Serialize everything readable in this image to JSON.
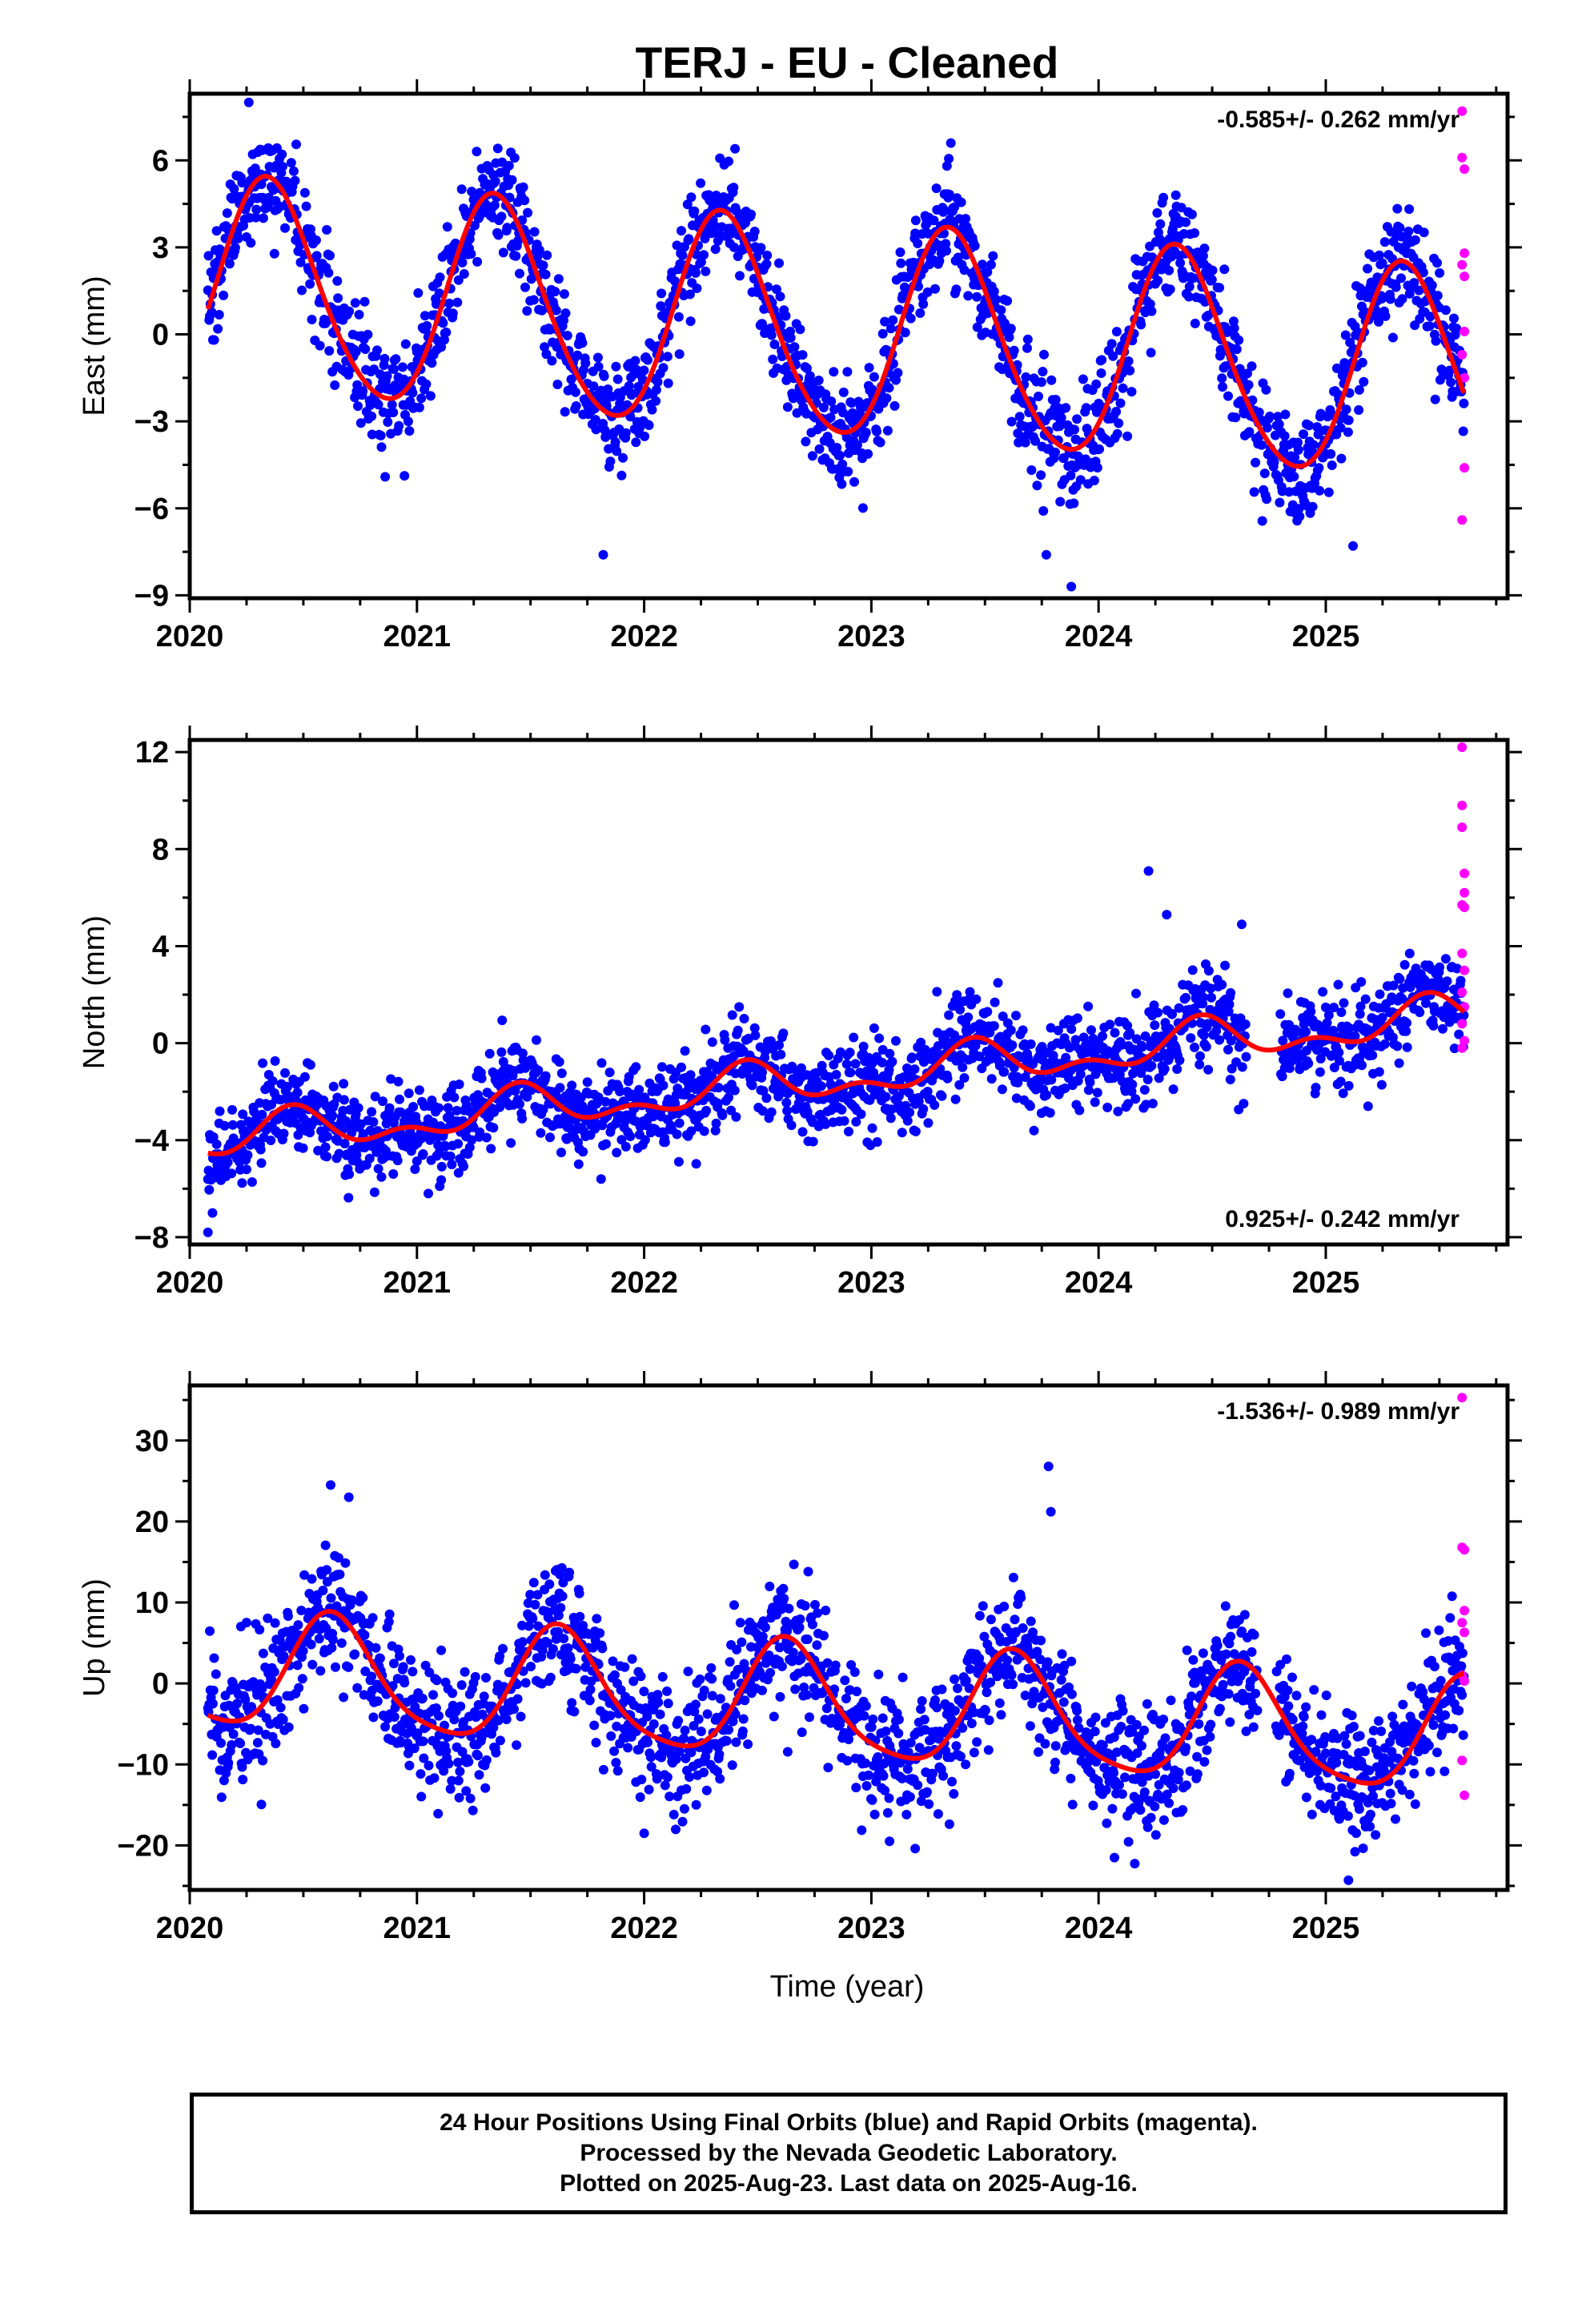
{
  "figure": {
    "title": "TERJ  - EU - Cleaned",
    "xlabel": "Time (year)",
    "caption": [
      "24 Hour Positions Using Final Orbits (blue) and Rapid Orbits (magenta).",
      "Processed by the Nevada Geodetic Laboratory.",
      "Plotted on 2025-Aug-23. Last data on 2025-Aug-16."
    ]
  },
  "colors": {
    "final_orbits": "#0000ff",
    "rapid_orbits": "#ff00ff",
    "model_fit": "#ff0000",
    "axes": "#000000"
  },
  "chart_data": [
    {
      "type": "scatter",
      "component": "East",
      "ylabel": "East (mm)",
      "xlim": [
        2020.0,
        2025.8
      ],
      "ylim": [
        -9.1,
        8.3
      ],
      "yticks": [
        -9,
        -6,
        -3,
        0,
        3,
        6
      ],
      "ytick_labels": [
        "−9",
        "−6",
        "−3",
        "0",
        "3",
        "6"
      ],
      "xticks": [
        2020,
        2021,
        2022,
        2023,
        2024,
        2025
      ],
      "rate_text": "-0.585+/- 0.262 mm/yr",
      "rate_position": "top-right",
      "model": {
        "offset": 1.7,
        "rate": -0.585,
        "annual_amplitude": 3.65,
        "annual_peak": 0.35,
        "semiannual_amplitude": 0.35,
        "semiannual_peak": 0.3
      },
      "scatter_sd": 0.95,
      "data_start": 2020.08,
      "data_end": 2025.61,
      "gaps": [],
      "final_points": [
        [
          2020.26,
          8.0
        ],
        [
          2021.42,
          4.2
        ],
        [
          2022.4,
          6.4
        ],
        [
          2023.35,
          6.6
        ],
        [
          2023.77,
          -7.6
        ],
        [
          2024.34,
          4.8
        ],
        [
          2021.82,
          -7.6
        ],
        [
          2023.88,
          -8.7
        ],
        [
          2025.12,
          -7.3
        ]
      ],
      "rapid_points": [
        [
          2025.6,
          7.7
        ],
        [
          2025.6,
          6.1
        ],
        [
          2025.61,
          5.7
        ],
        [
          2025.61,
          2.8
        ],
        [
          2025.6,
          2.4
        ],
        [
          2025.61,
          2.0
        ],
        [
          2025.61,
          0.1
        ],
        [
          2025.6,
          -0.7
        ],
        [
          2025.61,
          -1.5
        ],
        [
          2025.61,
          -4.6
        ],
        [
          2025.6,
          -6.4
        ]
      ]
    },
    {
      "type": "scatter",
      "component": "North",
      "ylabel": "North (mm)",
      "xlim": [
        2020.0,
        2025.8
      ],
      "ylim": [
        -8.3,
        12.5
      ],
      "yticks": [
        -8,
        -4,
        0,
        4,
        8,
        12
      ],
      "ytick_labels": [
        "−8",
        "−4",
        "0",
        "4",
        "8",
        "12"
      ],
      "xticks": [
        2020,
        2021,
        2022,
        2023,
        2024,
        2025
      ],
      "rate_text": "0.925+/- 0.242 mm/yr",
      "rate_position": "bottom-right",
      "model": {
        "offset": -4.1,
        "rate": 0.925,
        "annual_amplitude": 0.7,
        "annual_peak": 0.45,
        "semiannual_amplitude": 0.45,
        "semiannual_peak": 0.45
      },
      "scatter_sd": 0.9,
      "data_start": 2020.08,
      "data_end": 2025.61,
      "gaps": [
        [
          2024.65,
          2024.8
        ]
      ],
      "final_points": [
        [
          2020.08,
          -7.8
        ],
        [
          2020.1,
          -7.0
        ],
        [
          2024.22,
          7.1
        ],
        [
          2024.3,
          5.3
        ],
        [
          2024.63,
          4.9
        ],
        [
          2024.58,
          -1.5
        ],
        [
          2024.13,
          -2.5
        ],
        [
          2021.05,
          -6.2
        ],
        [
          2021.1,
          -5.9
        ]
      ],
      "rapid_points": [
        [
          2025.6,
          12.2
        ],
        [
          2025.6,
          9.8
        ],
        [
          2025.6,
          8.9
        ],
        [
          2025.61,
          7.0
        ],
        [
          2025.61,
          6.2
        ],
        [
          2025.6,
          5.7
        ],
        [
          2025.61,
          5.6
        ],
        [
          2025.6,
          3.7
        ],
        [
          2025.61,
          3.0
        ],
        [
          2025.6,
          2.1
        ],
        [
          2025.61,
          1.5
        ],
        [
          2025.6,
          0.8
        ],
        [
          2025.61,
          0.1
        ],
        [
          2025.6,
          -0.2
        ]
      ]
    },
    {
      "type": "scatter",
      "component": "Up",
      "ylabel": "Up (mm)",
      "xlim": [
        2020.0,
        2025.8
      ],
      "ylim": [
        -25.5,
        36.8
      ],
      "yticks": [
        -20,
        -10,
        0,
        10,
        20,
        30
      ],
      "ytick_labels": [
        "−20",
        "−10",
        "0",
        "10",
        "20",
        "30"
      ],
      "xticks": [
        2020,
        2021,
        2022,
        2023,
        2024,
        2025
      ],
      "rate_text": "-1.536+/- 0.989 mm/yr",
      "rate_position": "top-right",
      "model": {
        "offset": 1.6,
        "rate": -1.536,
        "annual_amplitude": 7.0,
        "annual_peak": 0.63,
        "semiannual_amplitude": 1.3,
        "semiannual_peak": 0.1
      },
      "scatter_sd": 4.0,
      "data_start": 2020.08,
      "data_end": 2025.61,
      "gaps": [
        [
          2024.7,
          2024.78
        ]
      ],
      "final_points": [
        [
          2020.62,
          24.5
        ],
        [
          2020.7,
          23.0
        ],
        [
          2023.78,
          26.8
        ],
        [
          2023.79,
          21.2
        ],
        [
          2024.07,
          -21.5
        ],
        [
          2025.1,
          -24.3
        ],
        [
          2022.0,
          -18.5
        ],
        [
          2023.08,
          -19.5
        ]
      ],
      "rapid_points": [
        [
          2025.6,
          35.3
        ],
        [
          2025.6,
          16.8
        ],
        [
          2025.61,
          16.5
        ],
        [
          2025.61,
          9.0
        ],
        [
          2025.6,
          7.5
        ],
        [
          2025.61,
          6.3
        ],
        [
          2025.6,
          1.0
        ],
        [
          2025.61,
          0.3
        ],
        [
          2025.6,
          -9.5
        ],
        [
          2025.61,
          -13.8
        ]
      ]
    }
  ]
}
